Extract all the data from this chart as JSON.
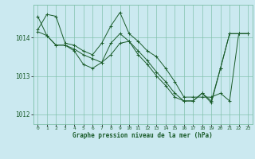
{
  "background_color": "#cbe9f0",
  "plot_bg_color": "#cbe9f0",
  "grid_color_major": "#7dbfa8",
  "grid_color_minor": "#a8d8c8",
  "line_color": "#1a5c2a",
  "title": "Graphe pression niveau de la mer (hPa)",
  "xlim": [
    -0.5,
    23.5
  ],
  "ylim": [
    1011.75,
    1014.85
  ],
  "yticks": [
    1012,
    1013,
    1014
  ],
  "xticks": [
    0,
    1,
    2,
    3,
    4,
    5,
    6,
    7,
    8,
    9,
    10,
    11,
    12,
    13,
    14,
    15,
    16,
    17,
    18,
    19,
    20,
    21,
    22,
    23
  ],
  "s1": [
    1014.2,
    1014.6,
    1014.55,
    1013.85,
    1013.8,
    1013.65,
    1013.55,
    1013.85,
    1014.3,
    1014.65,
    1014.1,
    1013.9,
    1013.65,
    1013.5,
    1013.2,
    1012.85,
    1012.45,
    1012.45,
    1012.45,
    1012.45,
    1012.55,
    1012.35,
    1014.1,
    1014.1
  ],
  "s2": [
    1014.55,
    1014.05,
    1013.8,
    1013.8,
    1013.7,
    1013.55,
    1013.45,
    1013.35,
    1013.85,
    1014.1,
    1013.9,
    1013.65,
    1013.4,
    1013.1,
    1012.85,
    1012.55,
    1012.35,
    1012.35,
    1012.55,
    1012.35,
    1013.2,
    1014.1,
    1014.1,
    1014.1
  ],
  "s3": [
    1014.15,
    1014.05,
    1013.8,
    1013.8,
    1013.65,
    1013.3,
    1013.2,
    1013.35,
    1013.55,
    1013.85,
    1013.9,
    1013.55,
    1013.3,
    1013.0,
    1012.75,
    1012.45,
    1012.35,
    1012.35,
    1012.55,
    1012.3,
    1013.2,
    1014.1,
    1014.1,
    1014.1
  ]
}
